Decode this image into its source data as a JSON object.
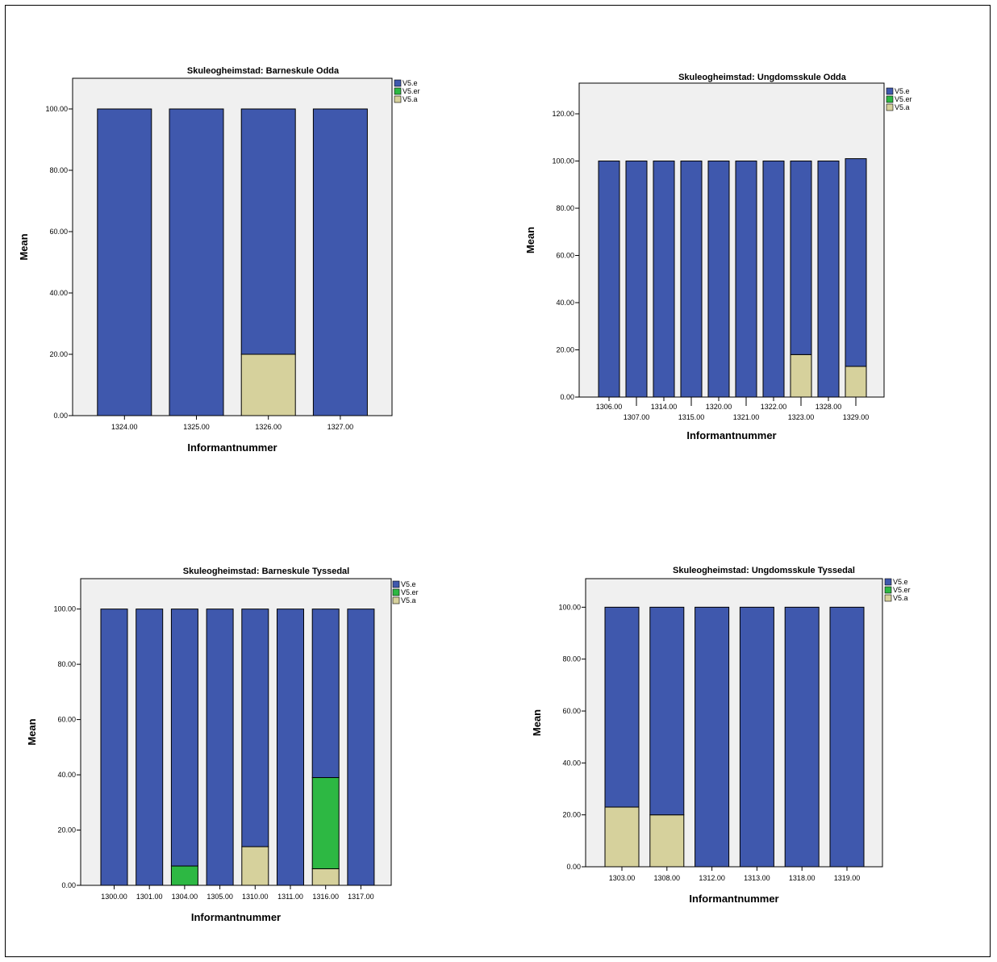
{
  "chart_data": [
    {
      "type": "bar",
      "stacked": true,
      "title": "Skuleogheimstad: Barneskule Odda",
      "xlabel": "Informantnummer",
      "ylabel": "Mean",
      "ylim": [
        0,
        110
      ],
      "yticks": [
        "0.00",
        "20.00",
        "40.00",
        "60.00",
        "80.00",
        "100.00"
      ],
      "categories": [
        "1324.00",
        "1325.00",
        "1326.00",
        "1327.00"
      ],
      "series": [
        {
          "name": "V5.e",
          "color": "#3f58ad",
          "values": [
            100,
            100,
            80,
            100
          ]
        },
        {
          "name": "V5.er",
          "color": "#2db843",
          "values": [
            0,
            0,
            0,
            0
          ]
        },
        {
          "name": "V5.a",
          "color": "#d6d19c",
          "values": [
            0,
            0,
            20,
            0
          ]
        }
      ],
      "legend": "top-right",
      "grid": false
    },
    {
      "type": "bar",
      "stacked": true,
      "title": "Skuleogheimstad: Ungdomsskule Odda",
      "xlabel": "Informantnummer",
      "ylabel": "Mean",
      "ylim": [
        0,
        133
      ],
      "yticks": [
        "0.00",
        "20.00",
        "40.00",
        "60.00",
        "80.00",
        "100.00",
        "120.00"
      ],
      "categories": [
        "1306.00",
        "1307.00",
        "1314.00",
        "1315.00",
        "1320.00",
        "1321.00",
        "1322.00",
        "1323.00",
        "1328.00",
        "1329.00"
      ],
      "series": [
        {
          "name": "V5.e",
          "color": "#3f58ad",
          "values": [
            100,
            100,
            100,
            100,
            100,
            100,
            100,
            82,
            100,
            88
          ]
        },
        {
          "name": "V5.er",
          "color": "#2db843",
          "values": [
            0,
            0,
            0,
            0,
            0,
            0,
            0,
            0,
            0,
            0
          ]
        },
        {
          "name": "V5.a",
          "color": "#d6d19c",
          "values": [
            0,
            0,
            0,
            0,
            0,
            0,
            0,
            18,
            0,
            13
          ]
        }
      ],
      "legend": "top-right",
      "grid": false
    },
    {
      "type": "bar",
      "stacked": true,
      "title": "Skuleogheimstad: Barneskule Tyssedal",
      "xlabel": "Informantnummer",
      "ylabel": "Mean",
      "ylim": [
        0,
        111
      ],
      "yticks": [
        "0.00",
        "20.00",
        "40.00",
        "60.00",
        "80.00",
        "100.00"
      ],
      "categories": [
        "1300.00",
        "1301.00",
        "1304.00",
        "1305.00",
        "1310.00",
        "1311.00",
        "1316.00",
        "1317.00"
      ],
      "series": [
        {
          "name": "V5.e",
          "color": "#3f58ad",
          "values": [
            100,
            100,
            93,
            100,
            86,
            100,
            61,
            100
          ]
        },
        {
          "name": "V5.er",
          "color": "#2db843",
          "values": [
            0,
            0,
            7,
            0,
            0,
            0,
            33,
            0
          ]
        },
        {
          "name": "V5.a",
          "color": "#d6d19c",
          "values": [
            0,
            0,
            0,
            0,
            14,
            0,
            6,
            0
          ]
        }
      ],
      "legend": "top-right",
      "grid": false
    },
    {
      "type": "bar",
      "stacked": true,
      "title": "Skuleogheimstad: Ungdomsskule Tyssedal",
      "xlabel": "Informantnummer",
      "ylabel": "Mean",
      "ylim": [
        0,
        111
      ],
      "yticks": [
        "0.00",
        "20.00",
        "40.00",
        "60.00",
        "80.00",
        "100.00"
      ],
      "categories": [
        "1303.00",
        "1308.00",
        "1312.00",
        "1313.00",
        "1318.00",
        "1319.00"
      ],
      "series": [
        {
          "name": "V5.e",
          "color": "#3f58ad",
          "values": [
            77,
            80,
            100,
            100,
            100,
            100
          ]
        },
        {
          "name": "V5.er",
          "color": "#2db843",
          "values": [
            0,
            0,
            0,
            0,
            0,
            0
          ]
        },
        {
          "name": "V5.a",
          "color": "#d6d19c",
          "values": [
            23,
            20,
            0,
            0,
            0,
            0
          ]
        }
      ],
      "legend": "top-right",
      "grid": false
    }
  ]
}
